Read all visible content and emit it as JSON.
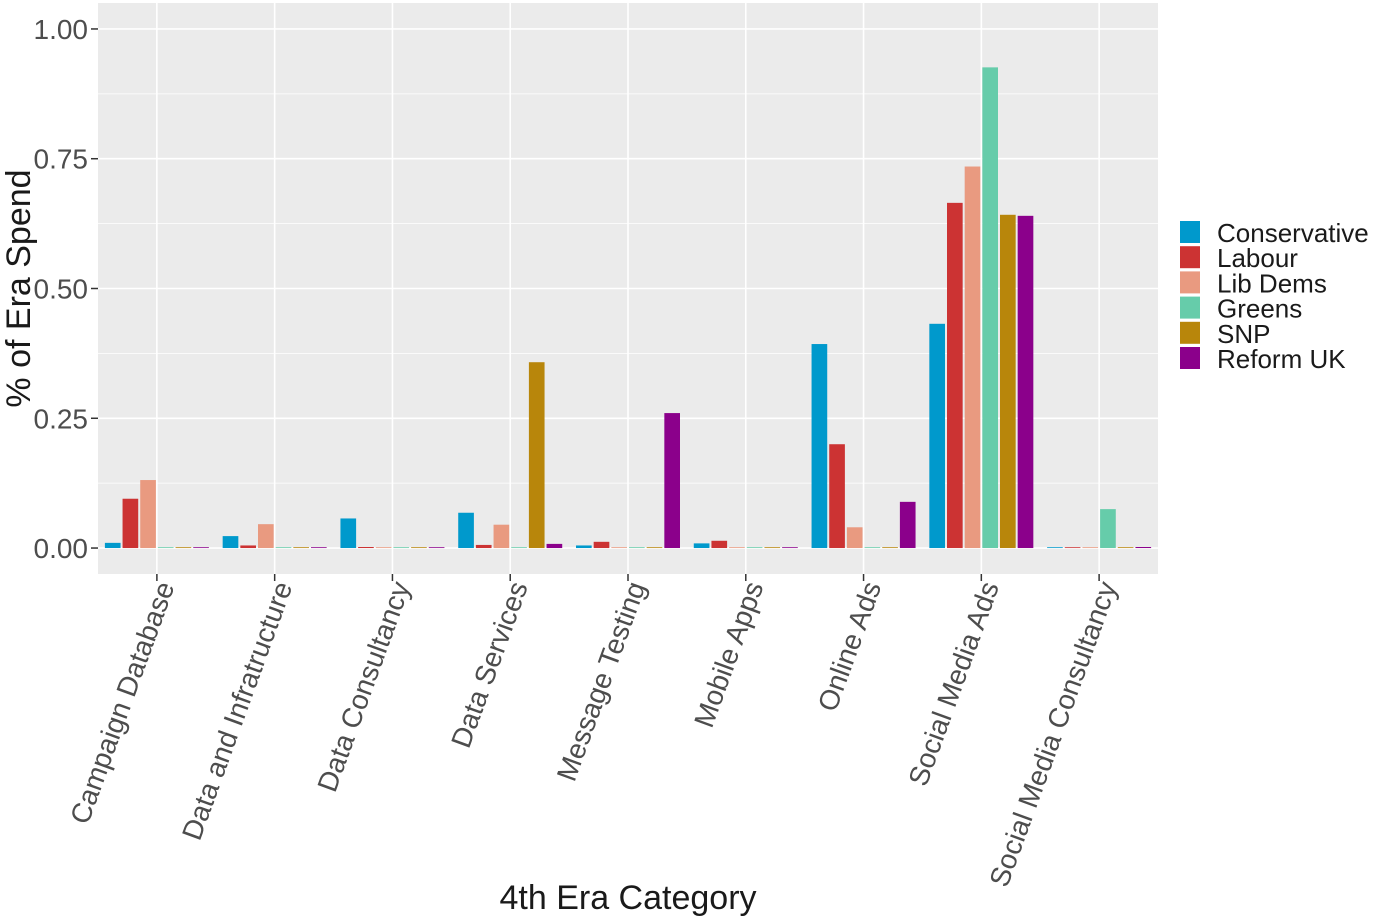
{
  "chart_data": {
    "type": "bar",
    "title": "",
    "xlabel": "4th Era Category",
    "ylabel": "% of Era Spend",
    "ylim": [
      -0.05,
      1.05
    ],
    "yticks": [
      0.0,
      0.25,
      0.5,
      0.75,
      1.0
    ],
    "ytick_labels": [
      "0.00",
      "0.25",
      "0.50",
      "0.75",
      "1.00"
    ],
    "grid": true,
    "legend_position": "right",
    "categories": [
      "Campaign Database",
      "Data and Infratructure",
      "Data Consultancy",
      "Data Services",
      "Message Testing",
      "Mobile Apps",
      "Online Ads",
      "Social Media Ads",
      "Social Media Consultancy"
    ],
    "series": [
      {
        "name": "Conservative",
        "color": "#0099CC",
        "values": [
          0.01,
          0.023,
          0.057,
          0.068,
          0.005,
          0.009,
          0.393,
          0.432,
          0.0
        ]
      },
      {
        "name": "Labour",
        "color": "#CC3333",
        "values": [
          0.095,
          0.005,
          0.002,
          0.006,
          0.012,
          0.014,
          0.2,
          0.665,
          0.0
        ]
      },
      {
        "name": "Lib Dems",
        "color": "#E99A80",
        "values": [
          0.131,
          0.046,
          0.0,
          0.045,
          0.0,
          0.0,
          0.04,
          0.735,
          0.0
        ]
      },
      {
        "name": "Greens",
        "color": "#66CCAA",
        "values": [
          0.0,
          0.0,
          0.0,
          0.0,
          0.0,
          0.0,
          0.0,
          0.926,
          0.075
        ]
      },
      {
        "name": "SNP",
        "color": "#B8860B",
        "values": [
          0.0,
          0.0,
          0.0,
          0.358,
          0.0,
          0.0,
          0.0,
          0.642,
          0.0
        ]
      },
      {
        "name": "Reform UK",
        "color": "#8B008B",
        "values": [
          0.001,
          0.0,
          0.0,
          0.008,
          0.26,
          0.0,
          0.089,
          0.64,
          0.002
        ]
      }
    ]
  },
  "colors": {
    "panel_background": "#EBEBEB",
    "grid_line": "#FFFFFF",
    "text": "#1a1a1a",
    "tick_text": "#4d4d4d"
  }
}
